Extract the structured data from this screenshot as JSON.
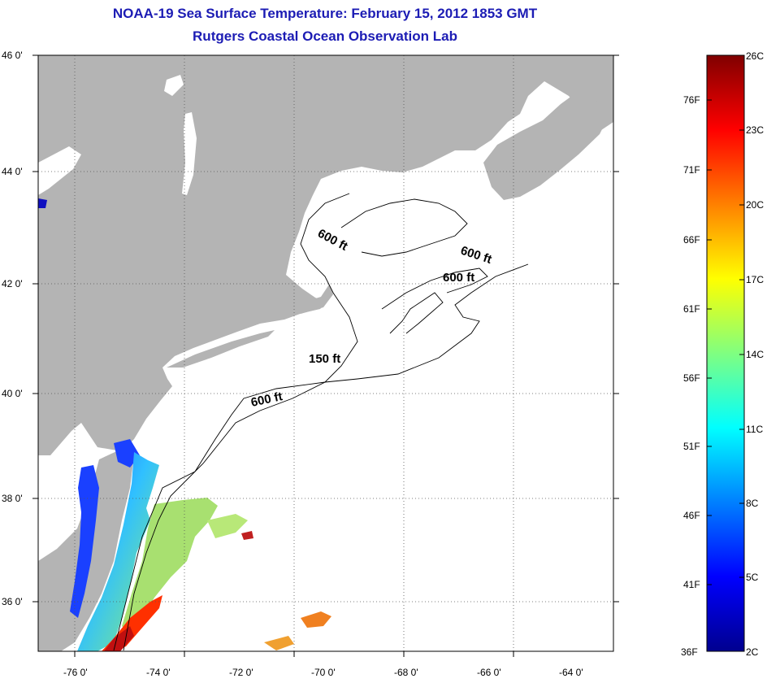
{
  "header": {
    "title": "NOAA-19 Sea Surface Temperature:  February 15, 2012 1853 GMT",
    "subtitle": "Rutgers Coastal Ocean Observation Lab"
  },
  "map": {
    "lat_labels": [
      "46 0'",
      "44 0'",
      "42 0'",
      "40 0'",
      "38 0'",
      "36 0'"
    ],
    "lon_labels": [
      "-76 0'",
      "-74 0'",
      "-72 0'",
      "-70 0'",
      "-68 0'",
      "-66 0'",
      "-64 0'"
    ],
    "contour_labels": [
      "600 ft",
      "600 ft",
      "600 ft",
      "150 ft",
      "600 ft"
    ],
    "colors": {
      "land": "#b4b4b4",
      "ocean": "#ffffff",
      "grid": "#555555",
      "title": "#1c1cb4"
    }
  },
  "colorbar": {
    "celsius_labels": [
      "26C",
      "23C",
      "20C",
      "17C",
      "14C",
      "11C",
      "8C",
      "5C",
      "2C"
    ],
    "fahrenheit_labels": [
      "76F",
      "71F",
      "66F",
      "61F",
      "56F",
      "51F",
      "46F",
      "41F",
      "36F"
    ],
    "gradient": [
      "#00008f",
      "#0000ff",
      "#0080ff",
      "#00ffff",
      "#80ff80",
      "#ffff00",
      "#ff8000",
      "#ff0000",
      "#800000"
    ]
  }
}
